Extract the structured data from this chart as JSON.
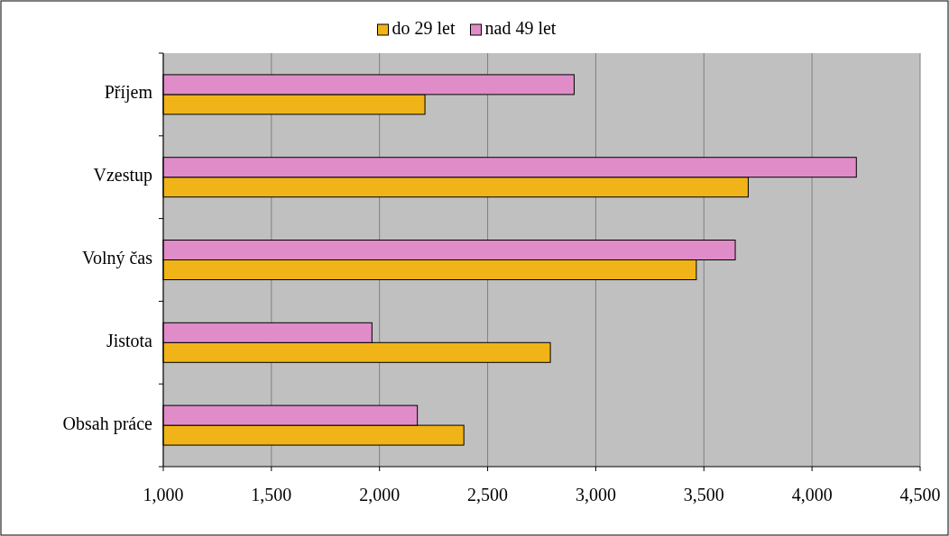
{
  "chart_data": {
    "type": "bar",
    "orientation": "horizontal",
    "categories": [
      "Příjem",
      "Vzestup",
      "Volný čas",
      "Jistota",
      "Obsah práce"
    ],
    "series": [
      {
        "name": "do 29 let",
        "color": "#f0b418",
        "values": [
          2210,
          3705,
          3465,
          2790,
          2390
        ]
      },
      {
        "name": "nad 49 let",
        "color": "#e08cc8",
        "values": [
          2900,
          4205,
          3645,
          1965,
          2175
        ]
      }
    ],
    "xlim": [
      1000,
      4500
    ],
    "xticks": [
      {
        "value": 1000,
        "label": "1,000"
      },
      {
        "value": 1500,
        "label": "1,500"
      },
      {
        "value": 2000,
        "label": "2,000"
      },
      {
        "value": 2500,
        "label": "2,500"
      },
      {
        "value": 3000,
        "label": "3,000"
      },
      {
        "value": 3500,
        "label": "3,500"
      },
      {
        "value": 4000,
        "label": "4,000"
      },
      {
        "value": 4500,
        "label": "4,500"
      }
    ],
    "grid": "x",
    "legend": "top"
  }
}
